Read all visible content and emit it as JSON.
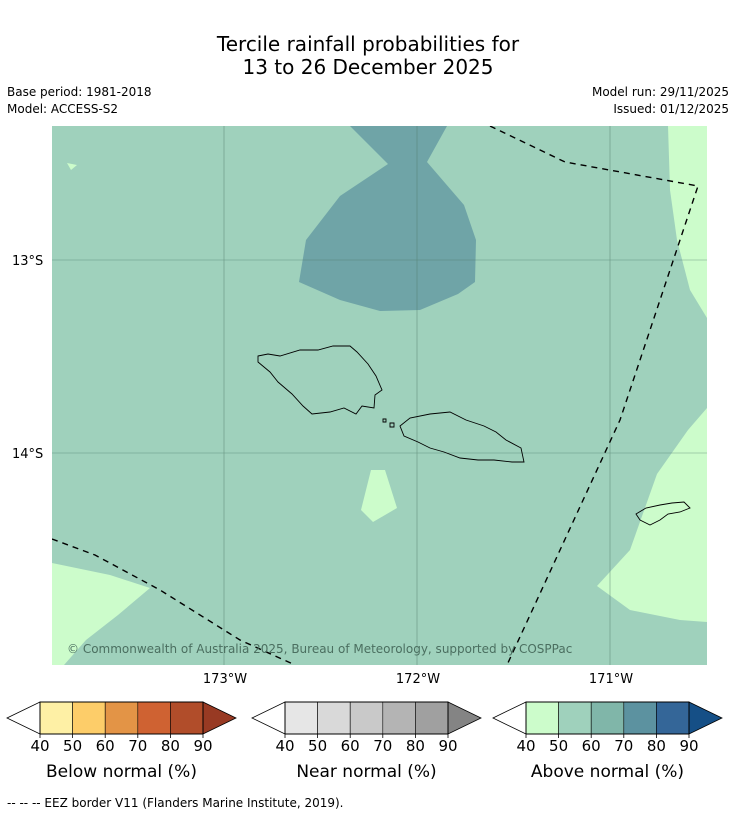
{
  "title": {
    "line1": "Tercile rainfall probabilities for",
    "line2": "13 to 26 December 2025"
  },
  "meta": {
    "base_period": "Base period: 1981-2018",
    "model": "Model: ACCESS-S2",
    "model_run": "Model run: 29/11/2025",
    "issued": "Issued: 01/12/2025"
  },
  "map": {
    "lat_labels": [
      "13°S",
      "14°S"
    ],
    "lon_labels": [
      "173°W",
      "172°W",
      "171°W"
    ],
    "copyright": "© Commonwealth of Australia 2025, Bureau of Meteorology, supported by COSPPac",
    "colors": {
      "above_50": "#9fd1bc",
      "above_70": "#6fa4a7",
      "above_40": "#ccfccb",
      "border": "#000000"
    }
  },
  "legends": [
    {
      "label": "Below normal (%)",
      "ticks": [
        "40",
        "50",
        "60",
        "70",
        "80",
        "90"
      ],
      "colors": [
        "#fef0a5",
        "#fdcd69",
        "#e39446",
        "#cf6232",
        "#b14d2a",
        "#983a23"
      ]
    },
    {
      "label": "Near normal (%)",
      "ticks": [
        "40",
        "50",
        "60",
        "70",
        "80",
        "90"
      ],
      "colors": [
        "#e6e6e6",
        "#d9d9d9",
        "#c9c9c9",
        "#b4b4b4",
        "#a0a0a0",
        "#848484"
      ]
    },
    {
      "label": "Above normal (%)",
      "ticks": [
        "40",
        "50",
        "60",
        "70",
        "80",
        "90"
      ],
      "colors": [
        "#ccfccb",
        "#9fd1bc",
        "#80b6a9",
        "#5c92a0",
        "#346698",
        "#154f86"
      ]
    }
  ],
  "footer": "--  --  -- EEZ border V11 (Flanders Marine Institute, 2019)."
}
